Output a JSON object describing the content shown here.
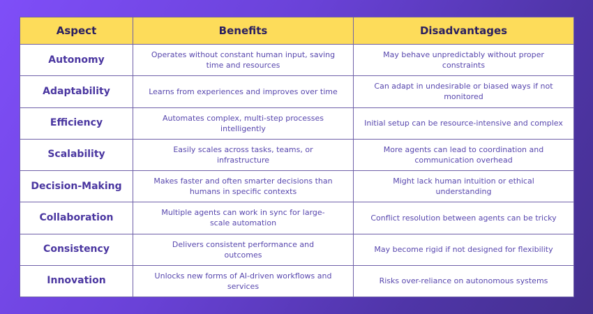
{
  "headers": [
    "Aspect",
    "Benefits",
    "Disadvantages"
  ],
  "rows": [
    {
      "aspect": "Autonomy",
      "benefit": "Operates without constant human input, saving time and resources",
      "disadvantage": "May behave unpredictably without proper constraints"
    },
    {
      "aspect": "Adaptability",
      "benefit": "Learns from experiences and improves over time",
      "disadvantage": "Can adapt in undesirable or biased ways if not monitored"
    },
    {
      "aspect": "Efficiency",
      "benefit": "Automates complex, multi-step processes intelligently",
      "disadvantage": "Initial setup can be resource-intensive and complex"
    },
    {
      "aspect": "Scalability",
      "benefit": "Easily scales across tasks, teams, or infrastructure",
      "disadvantage": "More agents can lead to coordination and communication overhead"
    },
    {
      "aspect": "Decision-Making",
      "benefit": "Makes faster and often smarter decisions than humans in specific contexts",
      "disadvantage": "Might lack human intuition or ethical understanding"
    },
    {
      "aspect": "Collaboration",
      "benefit": "Multiple agents can work in sync for large-scale automation",
      "disadvantage": "Conflict resolution between agents can be tricky"
    },
    {
      "aspect": "Consistency",
      "benefit": "Delivers consistent performance and outcomes",
      "disadvantage": "May become rigid if not designed for flexibility"
    },
    {
      "aspect": "Innovation",
      "benefit": "Unlocks new forms of AI-driven workflows and services",
      "disadvantage": "Risks over-reliance on autonomous systems"
    }
  ],
  "colors": {
    "header_bg": "#fddc5a",
    "accent_text": "#4a36a0",
    "background": "#6a42d8"
  }
}
